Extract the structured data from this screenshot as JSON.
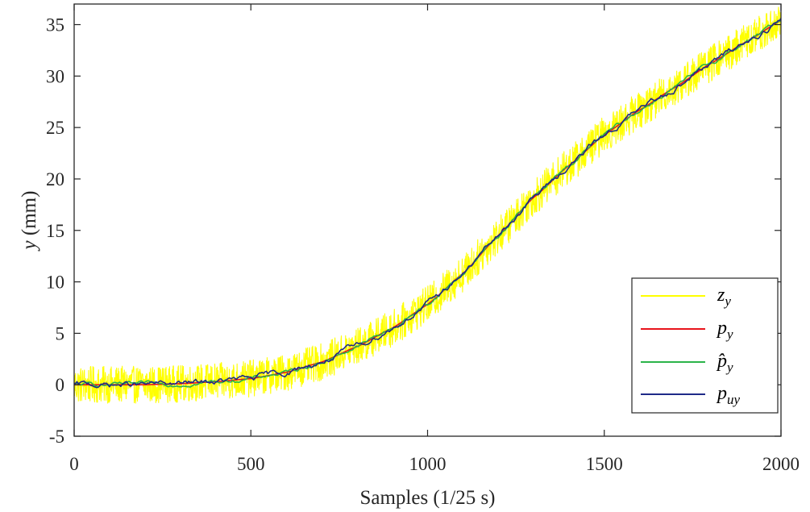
{
  "chart_data": {
    "type": "line",
    "title": "",
    "xlabel": "Samples (1/25 s)",
    "ylabel_var": "y",
    "ylabel_unit": " (mm)",
    "xlim": [
      0,
      2000
    ],
    "ylim": [
      -5,
      37
    ],
    "xticks": [
      0,
      500,
      1000,
      1500,
      2000
    ],
    "xtick_labels": [
      "0",
      "500",
      "1000",
      "1500",
      "2000"
    ],
    "yticks": [
      -5,
      0,
      5,
      10,
      15,
      20,
      25,
      30,
      35
    ],
    "ytick_labels": [
      "-5",
      "0",
      "5",
      "10",
      "15",
      "20",
      "25",
      "30",
      "35"
    ],
    "grid": false,
    "legend_position": "bottom-right",
    "x": [
      0,
      100,
      200,
      300,
      400,
      500,
      600,
      700,
      800,
      900,
      1000,
      1100,
      1200,
      1300,
      1400,
      1500,
      1600,
      1700,
      1800,
      1900,
      2000
    ],
    "series": [
      {
        "name": "z_y",
        "legend": {
          "base": "z",
          "sub": "y",
          "hat": false
        },
        "color": "#ffff00",
        "noise_amplitude": 1.8,
        "values": [
          0,
          0,
          0,
          0.1,
          0.3,
          0.6,
          1.2,
          2.2,
          3.7,
          5.5,
          7.8,
          10.8,
          14.5,
          18.2,
          21.3,
          24.3,
          26.7,
          28.9,
          31.2,
          33.3,
          35.4
        ]
      },
      {
        "name": "p_y",
        "legend": {
          "base": "p",
          "sub": "y",
          "hat": false
        },
        "color": "#e8141c",
        "noise_amplitude": 0,
        "values": [
          0,
          0,
          0,
          0.1,
          0.3,
          0.6,
          1.2,
          2.2,
          3.7,
          5.5,
          7.8,
          10.8,
          14.5,
          18.2,
          21.3,
          24.3,
          26.7,
          28.9,
          31.2,
          33.3,
          35.4
        ]
      },
      {
        "name": "p̂_y",
        "legend": {
          "base": "p",
          "sub": "y",
          "hat": true
        },
        "color": "#2bb44a",
        "noise_amplitude": 0.12,
        "values": [
          0,
          0,
          0,
          0.1,
          0.3,
          0.6,
          1.2,
          2.2,
          3.7,
          5.5,
          7.8,
          10.8,
          14.5,
          18.2,
          21.3,
          24.3,
          26.7,
          28.9,
          31.2,
          33.3,
          35.4
        ]
      },
      {
        "name": "p_uy",
        "legend": {
          "base": "p",
          "sub": "uy",
          "hat": false
        },
        "color": "#1f2a88",
        "noise_amplitude": 0.18,
        "values": [
          0,
          0,
          0,
          0.1,
          0.3,
          0.6,
          1.2,
          2.2,
          3.7,
          5.5,
          7.8,
          10.8,
          14.5,
          18.2,
          21.3,
          24.3,
          26.7,
          28.9,
          31.2,
          33.3,
          35.4
        ]
      }
    ]
  }
}
